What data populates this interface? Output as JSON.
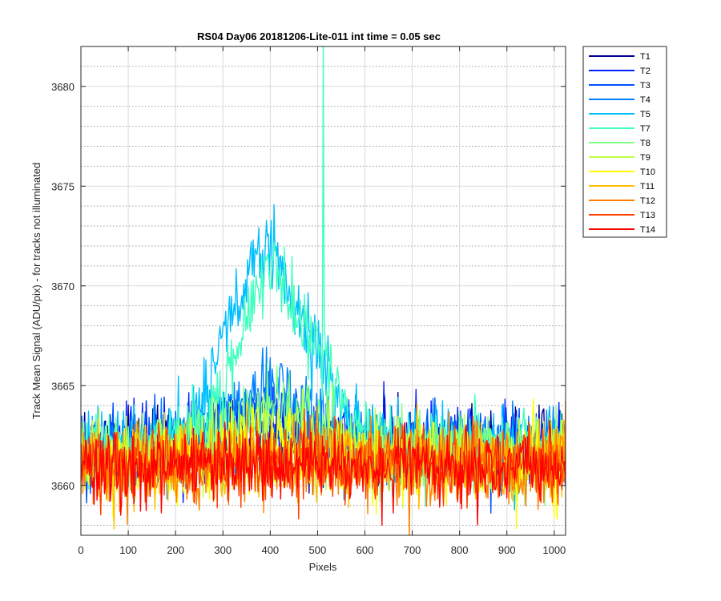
{
  "chart_data": {
    "type": "line",
    "title": "RS04 Day06 20181206-Lite-011 int time = 0.05 sec",
    "xlabel": "Pixels",
    "ylabel": "Track Mean Signal (ADU/pix) - for tracks not illuminated",
    "xlim": [
      0,
      1024
    ],
    "ylim": [
      3657.5,
      3682
    ],
    "xticks": [
      0,
      100,
      200,
      300,
      400,
      500,
      600,
      700,
      800,
      900,
      1000
    ],
    "yticks": [
      3660,
      3665,
      3670,
      3675,
      3680
    ],
    "xtick_labels": [
      "0",
      "100",
      "200",
      "300",
      "400",
      "500",
      "600",
      "700",
      "800",
      "900",
      "1000"
    ],
    "ytick_labels": [
      "3660",
      "3665",
      "3670",
      "3675",
      "3680"
    ],
    "grid": "major solid + minor dotted",
    "legend_position": "outside-right",
    "series": [
      {
        "name": "T1",
        "color": "#00008F",
        "baseline": 3662.0,
        "noise": 1.3,
        "bump": 0.0,
        "bump_center": 400,
        "bump_width": 150
      },
      {
        "name": "T2",
        "color": "#0020FF",
        "baseline": 3662.0,
        "noise": 1.3,
        "bump": 0.8,
        "bump_center": 400,
        "bump_width": 150
      },
      {
        "name": "T3",
        "color": "#0050FF",
        "baseline": 3661.9,
        "noise": 1.3,
        "bump": 1.8,
        "bump_center": 400,
        "bump_width": 130
      },
      {
        "name": "T4",
        "color": "#0080FF",
        "baseline": 3661.8,
        "noise": 1.3,
        "bump": 3.2,
        "bump_center": 400,
        "bump_width": 120
      },
      {
        "name": "T5",
        "color": "#00BFFF",
        "baseline": 3661.9,
        "noise": 1.3,
        "bump": 10.5,
        "bump_center": 400,
        "bump_width": 120,
        "dip": 2.5
      },
      {
        "name": "T7",
        "color": "#40FFBF",
        "baseline": 3661.9,
        "noise": 1.2,
        "bump": 10.0,
        "bump_center": 420,
        "bump_width": 110,
        "dip": 2.5,
        "spike_x": 512,
        "spike_y": 3682
      },
      {
        "name": "T8",
        "color": "#80FF80",
        "baseline": 3661.6,
        "noise": 1.2,
        "bump": 2.3,
        "bump_center": 420,
        "bump_width": 130
      },
      {
        "name": "T9",
        "color": "#BFFF40",
        "baseline": 3661.4,
        "noise": 1.2,
        "bump": 1.2,
        "bump_center": 420,
        "bump_width": 130
      },
      {
        "name": "T10",
        "color": "#FFFF00",
        "baseline": 3661.2,
        "noise": 1.3,
        "bump": 0.6,
        "bump_center": 420,
        "bump_width": 130
      },
      {
        "name": "T11",
        "color": "#FFBF00",
        "baseline": 3661.1,
        "noise": 1.3,
        "bump": 0.3,
        "bump_center": 420,
        "bump_width": 130
      },
      {
        "name": "T12",
        "color": "#FF8000",
        "baseline": 3661.0,
        "noise": 1.3,
        "bump": 0.1,
        "bump_center": 420,
        "bump_width": 130
      },
      {
        "name": "T13",
        "color": "#FF4000",
        "baseline": 3661.0,
        "noise": 1.3,
        "bump": 0.0,
        "bump_center": 420,
        "bump_width": 130
      },
      {
        "name": "T14",
        "color": "#FF0000",
        "baseline": 3661.0,
        "noise": 1.2,
        "bump": 0.0,
        "bump_center": 420,
        "bump_width": 130
      }
    ]
  }
}
